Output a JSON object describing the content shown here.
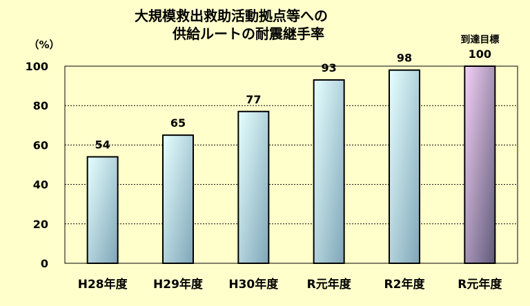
{
  "chart_data": {
    "type": "bar",
    "title_lines": [
      "大規模救出救助活動拠点等への",
      "供給ルートの耐震継手率"
    ],
    "unit_label": "（%）",
    "categories": [
      "H28年度",
      "H29年度",
      "H30年度",
      "R元年度",
      "R2年度",
      "R元年度"
    ],
    "values": [
      54,
      65,
      77,
      93,
      98,
      100
    ],
    "data_labels": [
      "54",
      "65",
      "77",
      "93",
      "98",
      "100"
    ],
    "target_annotation": "到達目標",
    "target_index": 5,
    "yticks": [
      "0",
      "20",
      "40",
      "60",
      "80",
      "100"
    ],
    "ylim": [
      0,
      100
    ],
    "grid": true,
    "colors": {
      "background": "#ffffcc",
      "bar_light": "#e6ffff",
      "bar_dark": "#7fa6b8",
      "target_light": "#f3d0f5",
      "target_dark": "#5f5a78"
    }
  }
}
